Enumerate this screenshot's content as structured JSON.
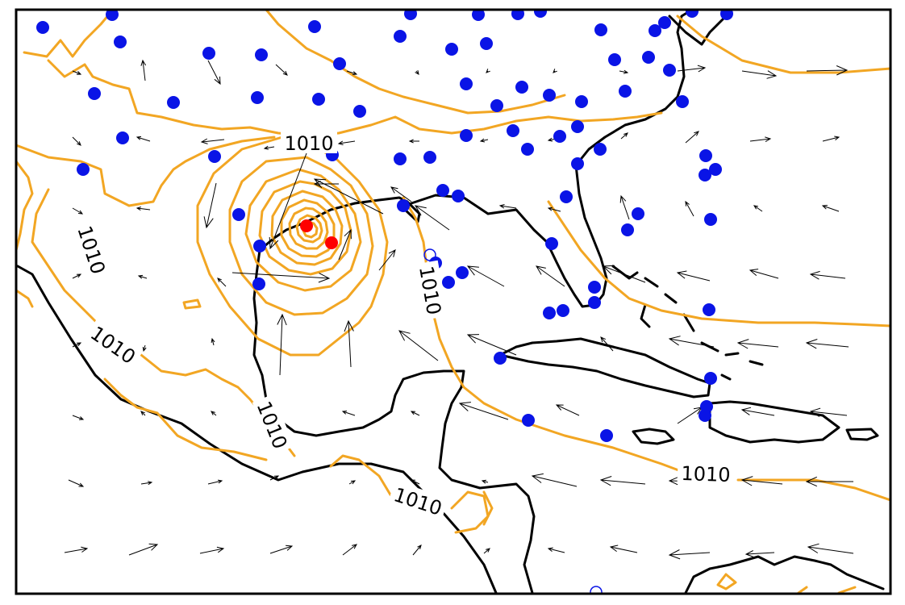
{
  "map": {
    "isobar_label": "1010",
    "colors": {
      "isobar": "#f2a623",
      "coastline": "#000000",
      "station": "#0a14e6",
      "storm_center": "#ff0000",
      "wind_vector": "#000000",
      "frame": "#000000"
    }
  }
}
